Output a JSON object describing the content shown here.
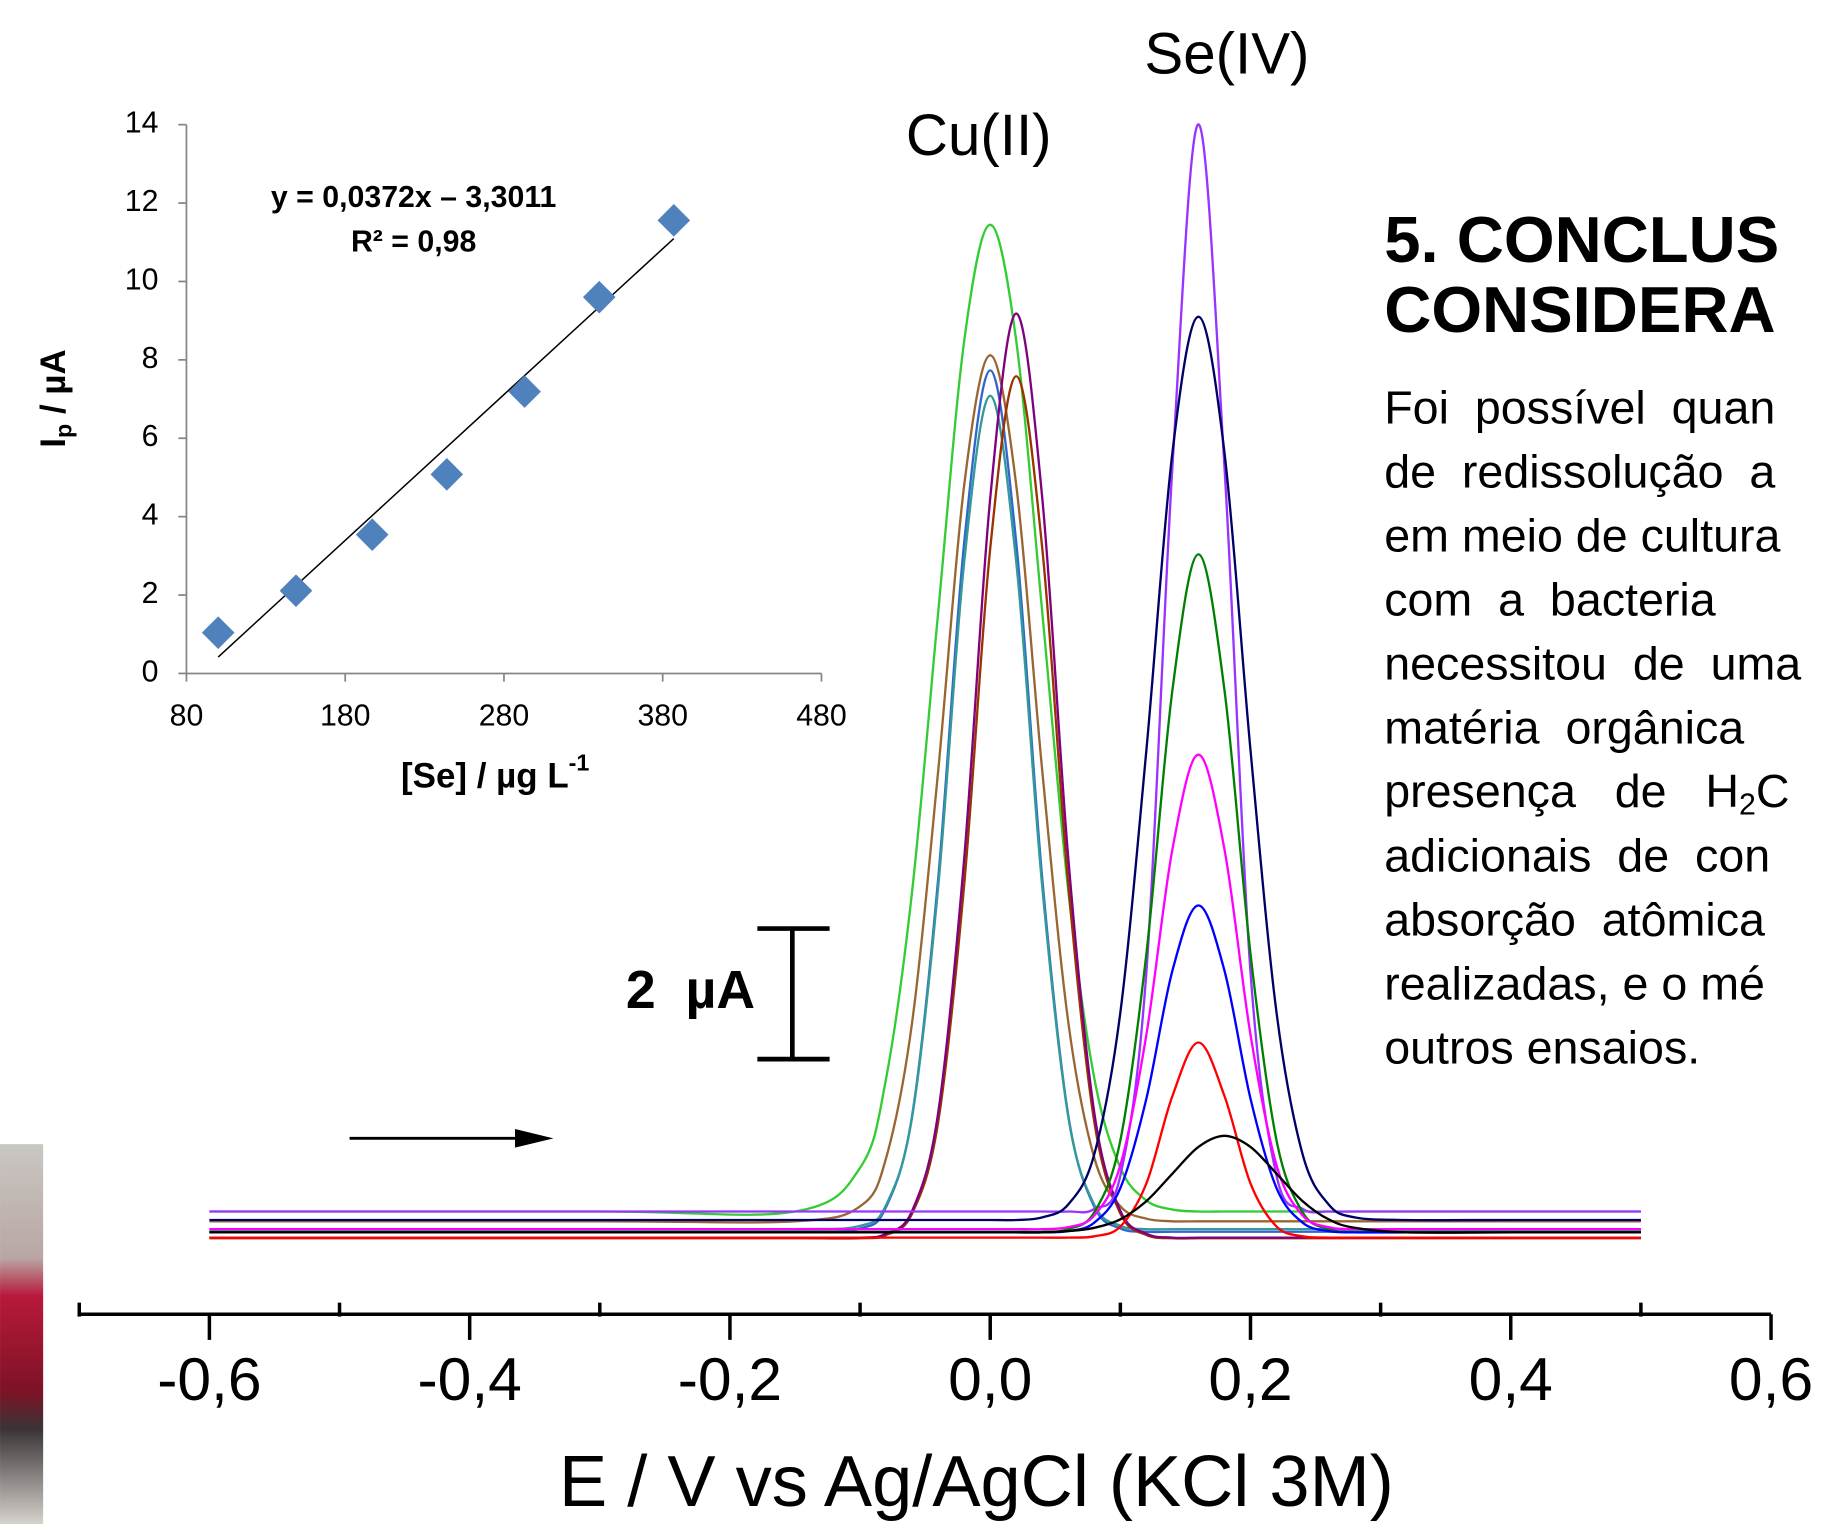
{
  "chart_data": [
    {
      "type": "line",
      "xlabel": "E / V vs Ag/AgCl (KCl 3M)",
      "xlim": [
        -0.7,
        0.6
      ],
      "ylim": [
        0,
        17.23
      ],
      "xticks": [
        {
          "value": -0.6,
          "label": "-0,6"
        },
        {
          "value": -0.4,
          "label": "-0,4"
        },
        {
          "value": -0.2,
          "label": "-0,2"
        },
        {
          "value": 0,
          "label": "0,0"
        },
        {
          "value": 0.2,
          "label": "0,2"
        },
        {
          "value": 0.4,
          "label": "0,4"
        },
        {
          "value": 0.6,
          "label": "0,6"
        }
      ],
      "xminor_ticks": [
        -0.7,
        -0.5,
        -0.3,
        -0.1,
        0.1,
        0.3,
        0.5
      ],
      "scale_bar": {
        "value": 2,
        "label": "2  µA"
      },
      "annotations": [
        "Cu(II)",
        "Se(IV)"
      ],
      "x": [
        -0.6,
        -0.3,
        -0.15,
        -0.1,
        -0.08,
        -0.06,
        -0.04,
        -0.02,
        0,
        0.02,
        0.04,
        0.06,
        0.08,
        0.1,
        0.12,
        0.14,
        0.16,
        0.18,
        0.2,
        0.22,
        0.24,
        0.26,
        0.28,
        0.32,
        0.4,
        0.5
      ],
      "series": [
        {
          "color": "#33cc33",
          "values": [
            0.45,
            0.45,
            0.45,
            1.12,
            2.49,
            5.36,
            9.63,
            13.79,
            15.57,
            13.79,
            9.63,
            5.36,
            2.49,
            1.12,
            0.62,
            0.48,
            0.45,
            0.45,
            0.45,
            0.45,
            0.45,
            0.45,
            0.45,
            0.45,
            0.45,
            0.45
          ]
        },
        {
          "color": "#996633",
          "values": [
            0.3,
            0.3,
            0.3,
            0.53,
            1.27,
            3.35,
            7.2,
            11.58,
            13.57,
            11.58,
            7.2,
            3.35,
            1.27,
            0.53,
            0.34,
            0.3,
            0.3,
            0.3,
            0.3,
            0.3,
            0.3,
            0.3,
            0.3,
            0.3,
            0.3,
            0.3
          ]
        },
        {
          "color": "#3366cc",
          "values": [
            0.14,
            0.14,
            0.14,
            0.19,
            0.52,
            1.92,
            5.55,
            10.7,
            13.34,
            10.7,
            5.55,
            1.92,
            0.52,
            0.19,
            0.14,
            0.14,
            0.14,
            0.14,
            0.14,
            0.14,
            0.14,
            0.14,
            0.14,
            0.14,
            0.14,
            0.14
          ]
        },
        {
          "color": "#339999",
          "values": [
            0.18,
            0.18,
            0.18,
            0.23,
            0.55,
            1.9,
            5.42,
            10.4,
            12.95,
            10.4,
            5.42,
            1.9,
            0.55,
            0.23,
            0.18,
            0.18,
            0.18,
            0.18,
            0.18,
            0.18,
            0.18,
            0.18,
            0.18,
            0.18,
            0.18,
            0.18
          ]
        },
        {
          "color": "#993300",
          "values": [
            0.04,
            0.04,
            0.04,
            0.04,
            0.09,
            0.42,
            1.82,
            5.46,
            10.61,
            13.25,
            10.61,
            5.46,
            1.82,
            0.42,
            0.09,
            0.04,
            0.04,
            0.04,
            0.04,
            0.04,
            0.04,
            0.04,
            0.04,
            0.04,
            0.04,
            0.04
          ]
        },
        {
          "color": "#800080",
          "values": [
            0.05,
            0.05,
            0.05,
            0.05,
            0.11,
            0.46,
            1.96,
            5.86,
            11.38,
            14.21,
            11.38,
            5.86,
            1.96,
            0.46,
            0.11,
            0.05,
            0.05,
            0.05,
            0.05,
            0.05,
            0.05,
            0.05,
            0.05,
            0.05,
            0.05,
            0.05
          ]
        },
        {
          "color": "#9933ff",
          "values": [
            0.45,
            0.45,
            0.45,
            0.45,
            0.45,
            0.45,
            0.45,
            0.45,
            0.45,
            0.45,
            0.45,
            0.45,
            0.49,
            1.0,
            4.12,
            11.86,
            17.11,
            11.86,
            4.12,
            1.0,
            0.49,
            0.45,
            0.45,
            0.45,
            0.45,
            0.45
          ]
        },
        {
          "color": "#000066",
          "values": [
            0.32,
            0.32,
            0.32,
            0.32,
            0.32,
            0.32,
            0.32,
            0.32,
            0.32,
            0.32,
            0.36,
            0.56,
            1.33,
            3.5,
            7.52,
            12.08,
            14.16,
            12.08,
            7.52,
            3.5,
            1.33,
            0.56,
            0.36,
            0.32,
            0.32,
            0.32
          ]
        },
        {
          "color": "#008000",
          "values": [
            0.14,
            0.14,
            0.14,
            0.14,
            0.14,
            0.14,
            0.14,
            0.14,
            0.14,
            0.14,
            0.14,
            0.18,
            0.44,
            1.54,
            4.4,
            8.44,
            10.52,
            8.44,
            4.4,
            1.54,
            0.44,
            0.18,
            0.14,
            0.14,
            0.14,
            0.14
          ]
        },
        {
          "color": "#ff00ff",
          "values": [
            0.18,
            0.18,
            0.18,
            0.18,
            0.18,
            0.18,
            0.18,
            0.18,
            0.18,
            0.18,
            0.18,
            0.21,
            0.39,
            1.16,
            3.16,
            6.0,
            7.45,
            6.0,
            3.16,
            1.16,
            0.39,
            0.21,
            0.18,
            0.18,
            0.18,
            0.18
          ]
        },
        {
          "color": "#0000ff",
          "values": [
            0.13,
            0.13,
            0.13,
            0.13,
            0.13,
            0.13,
            0.13,
            0.13,
            0.13,
            0.13,
            0.13,
            0.15,
            0.28,
            0.81,
            2.18,
            4.14,
            5.14,
            4.14,
            2.18,
            0.81,
            0.28,
            0.15,
            0.13,
            0.13,
            0.13,
            0.13
          ]
        },
        {
          "color": "#ff0000",
          "values": [
            0.05,
            0.05,
            0.05,
            0.05,
            0.05,
            0.05,
            0.05,
            0.05,
            0.05,
            0.05,
            0.05,
            0.05,
            0.07,
            0.22,
            0.88,
            2.22,
            3.04,
            2.22,
            0.88,
            0.22,
            0.07,
            0.05,
            0.05,
            0.05,
            0.05,
            0.05
          ]
        },
        {
          "color": "#000000",
          "values": [
            0.13,
            0.13,
            0.13,
            0.13,
            0.13,
            0.13,
            0.13,
            0.13,
            0.13,
            0.13,
            0.13,
            0.15,
            0.2,
            0.33,
            0.61,
            1.03,
            1.44,
            1.61,
            1.44,
            1.03,
            0.61,
            0.33,
            0.2,
            0.13,
            0.13,
            0.13
          ]
        }
      ]
    },
    {
      "type": "scatter",
      "xlabel": {
        "main": "[Se] / µg L",
        "sup": "-1"
      },
      "ylabel": {
        "main": "I",
        "sub": "p",
        "rest": " / µA"
      },
      "xlim": [
        80,
        480
      ],
      "ylim": [
        0,
        14
      ],
      "xticks": [
        80,
        180,
        280,
        380,
        480
      ],
      "yticks": [
        0,
        2,
        4,
        6,
        8,
        10,
        12,
        14
      ],
      "color": "#4f81bd",
      "x": [
        100,
        149,
        197,
        244,
        293,
        340,
        387
      ],
      "values": [
        1.04,
        2.11,
        3.54,
        5.08,
        7.19,
        9.6,
        11.56
      ],
      "trendline": {
        "label": "y = 0,0372x – 3,3011",
        "slope": 0.0372,
        "intercept": -3.3011,
        "r2_label": "R² = 0,98",
        "r2": 0.98
      }
    }
  ],
  "text": {
    "heading": [
      "5. CONCLUS",
      "CONSIDERA"
    ],
    "paragraph": [
      "Foi  possível  quan",
      "de  redissolução  a",
      "em meio de cultura",
      "com  a  bacteria",
      "necessitou  de  uma",
      "matéria  orgânica",
      [
        "presença   de   H",
        "2",
        "C"
      ],
      "adicionais  de  con",
      "absorção  atômica",
      "realizadas, e o mé",
      "outros ensaios."
    ]
  }
}
